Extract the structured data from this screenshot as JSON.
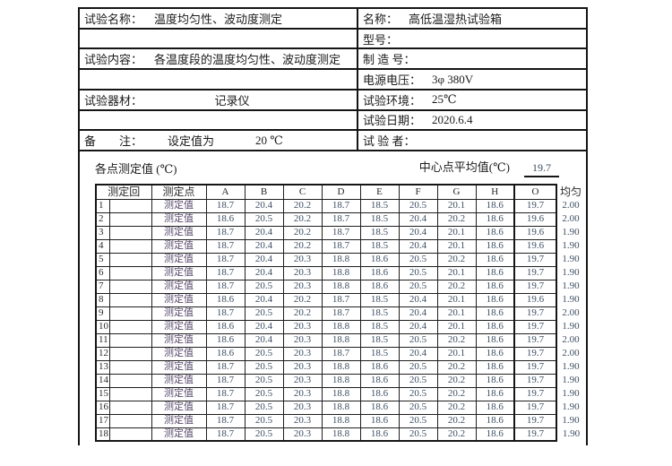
{
  "form": {
    "left": [
      {
        "label": "试验名称：",
        "value": "温度均匀性、波动度测定"
      },
      {
        "label": "",
        "value": ""
      },
      {
        "label": "试验内容：",
        "value": "各温度段的温度均匀性、波动度测定"
      },
      {
        "label": "",
        "value": ""
      },
      {
        "label": "试验器材：",
        "value": "记录仪"
      },
      {
        "label": "",
        "value": ""
      },
      {
        "label": "备　　注：",
        "value": "设定值为",
        "value2": "20 ℃"
      }
    ],
    "right": [
      {
        "label": "名称：",
        "value": "高低温湿热试验箱"
      },
      {
        "label": "型号：",
        "value": ""
      },
      {
        "label": "制 造 号：",
        "value": ""
      },
      {
        "label": "电源电压：",
        "value": "3φ 380V"
      },
      {
        "label": "试验环境：",
        "value": "25℃"
      },
      {
        "label": "试验日期：",
        "value": "2020.6.4"
      },
      {
        "label": "试 验 者：",
        "value": ""
      }
    ]
  },
  "section": {
    "points_title": "各点测定值 (℃)",
    "center_avg_label": "中心点平均值(℃)",
    "center_avg_value": "19.7"
  },
  "table": {
    "header": {
      "round": "测定回",
      "point": "测定点",
      "cols": [
        "A",
        "B",
        "C",
        "D",
        "E",
        "F",
        "G",
        "H",
        "O"
      ],
      "uniformity": "均匀"
    },
    "row_point_label": "测定值",
    "rows": [
      {
        "no": "1",
        "values": [
          "18.7",
          "20.4",
          "20.2",
          "18.7",
          "18.5",
          "20.5",
          "20.1",
          "18.6",
          "19.7"
        ],
        "uniformity": "2.00"
      },
      {
        "no": "2",
        "values": [
          "18.6",
          "20.5",
          "20.2",
          "18.7",
          "18.5",
          "20.4",
          "20.2",
          "18.6",
          "19.6"
        ],
        "uniformity": "2.00"
      },
      {
        "no": "3",
        "values": [
          "18.7",
          "20.4",
          "20.2",
          "18.7",
          "18.5",
          "20.4",
          "20.1",
          "18.6",
          "19.6"
        ],
        "uniformity": "1.90"
      },
      {
        "no": "4",
        "values": [
          "18.7",
          "20.4",
          "20.2",
          "18.7",
          "18.5",
          "20.4",
          "20.1",
          "18.6",
          "19.6"
        ],
        "uniformity": "1.90"
      },
      {
        "no": "5",
        "values": [
          "18.7",
          "20.4",
          "20.3",
          "18.8",
          "18.6",
          "20.5",
          "20.2",
          "18.6",
          "19.7"
        ],
        "uniformity": "1.90"
      },
      {
        "no": "6",
        "values": [
          "18.7",
          "20.4",
          "20.3",
          "18.8",
          "18.6",
          "20.5",
          "20.1",
          "18.6",
          "19.7"
        ],
        "uniformity": "1.90"
      },
      {
        "no": "7",
        "values": [
          "18.7",
          "20.5",
          "20.3",
          "18.8",
          "18.6",
          "20.5",
          "20.2",
          "18.6",
          "19.7"
        ],
        "uniformity": "1.90"
      },
      {
        "no": "8",
        "values": [
          "18.6",
          "20.4",
          "20.2",
          "18.7",
          "18.5",
          "20.4",
          "20.1",
          "18.6",
          "19.6"
        ],
        "uniformity": "1.90"
      },
      {
        "no": "9",
        "values": [
          "18.7",
          "20.5",
          "20.2",
          "18.7",
          "18.5",
          "20.4",
          "20.1",
          "18.6",
          "19.7"
        ],
        "uniformity": "2.00"
      },
      {
        "no": "10",
        "values": [
          "18.6",
          "20.4",
          "20.3",
          "18.8",
          "18.5",
          "20.4",
          "20.1",
          "18.6",
          "19.7"
        ],
        "uniformity": "1.90"
      },
      {
        "no": "11",
        "values": [
          "18.6",
          "20.4",
          "20.3",
          "18.8",
          "18.5",
          "20.5",
          "20.2",
          "18.6",
          "19.7"
        ],
        "uniformity": "2.00"
      },
      {
        "no": "12",
        "values": [
          "18.6",
          "20.5",
          "20.3",
          "18.7",
          "18.5",
          "20.4",
          "20.1",
          "18.6",
          "19.7"
        ],
        "uniformity": "2.00"
      },
      {
        "no": "13",
        "values": [
          "18.7",
          "20.5",
          "20.3",
          "18.8",
          "18.6",
          "20.5",
          "20.2",
          "18.6",
          "19.7"
        ],
        "uniformity": "1.90"
      },
      {
        "no": "14",
        "values": [
          "18.7",
          "20.5",
          "20.3",
          "18.8",
          "18.6",
          "20.5",
          "20.2",
          "18.6",
          "19.7"
        ],
        "uniformity": "1.90"
      },
      {
        "no": "15",
        "values": [
          "18.7",
          "20.5",
          "20.3",
          "18.8",
          "18.6",
          "20.5",
          "20.2",
          "18.6",
          "19.7"
        ],
        "uniformity": "1.90"
      },
      {
        "no": "16",
        "values": [
          "18.7",
          "20.5",
          "20.3",
          "18.8",
          "18.6",
          "20.5",
          "20.2",
          "18.6",
          "19.7"
        ],
        "uniformity": "1.90"
      },
      {
        "no": "17",
        "values": [
          "18.7",
          "20.5",
          "20.3",
          "18.8",
          "18.6",
          "20.5",
          "20.2",
          "18.6",
          "19.7"
        ],
        "uniformity": "1.90"
      },
      {
        "no": "18",
        "values": [
          "18.7",
          "20.5",
          "20.3",
          "18.8",
          "18.6",
          "20.5",
          "20.2",
          "18.6",
          "19.7"
        ],
        "uniformity": "1.90"
      }
    ]
  }
}
